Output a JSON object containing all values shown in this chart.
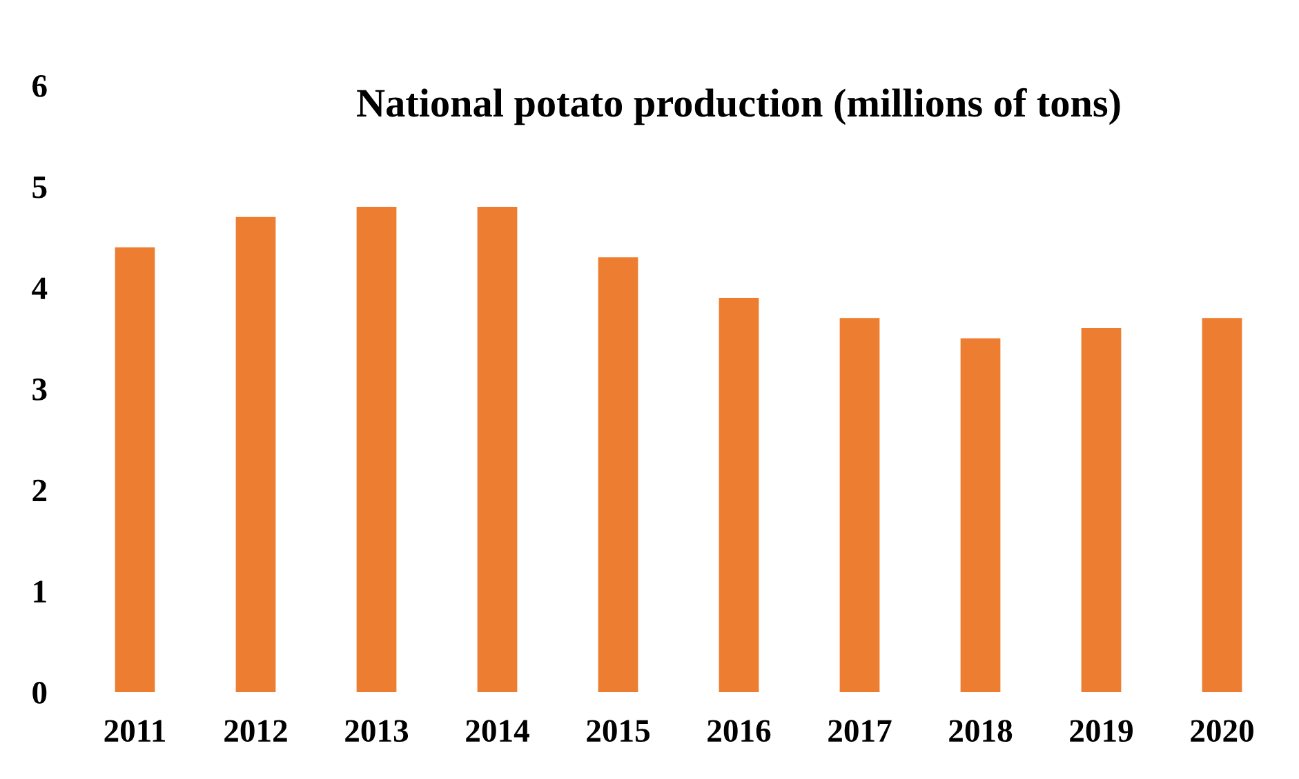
{
  "chart_data": {
    "type": "bar",
    "title": "National potato production (millions of tons)",
    "categories": [
      "2011",
      "2012",
      "2013",
      "2014",
      "2015",
      "2016",
      "2017",
      "2018",
      "2019",
      "2020"
    ],
    "values": [
      4.4,
      4.7,
      4.8,
      4.8,
      4.3,
      3.9,
      3.7,
      3.5,
      3.6,
      3.7
    ],
    "color": "#ed7d31",
    "ylim": [
      0,
      6
    ],
    "yticks": [
      0,
      1,
      2,
      3,
      4,
      5,
      6
    ],
    "grid": false,
    "legend": false
  }
}
